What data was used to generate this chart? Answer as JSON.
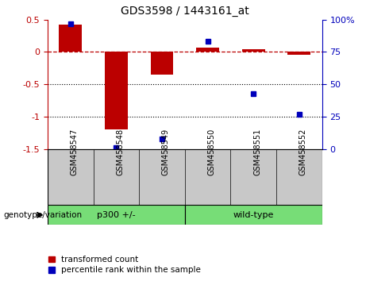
{
  "title": "GDS3598 / 1443161_at",
  "samples": [
    "GSM458547",
    "GSM458548",
    "GSM458549",
    "GSM458550",
    "GSM458551",
    "GSM458552"
  ],
  "red_values": [
    0.42,
    -1.2,
    -0.35,
    0.07,
    0.04,
    -0.04
  ],
  "blue_values_pct": [
    97,
    1,
    8,
    83,
    43,
    27
  ],
  "group_labels": [
    "p300 +/-",
    "wild-type"
  ],
  "group_spans": [
    3,
    3
  ],
  "group_color": "#77DD77",
  "sample_bg_color": "#C8C8C8",
  "ylim_left": [
    -1.5,
    0.5
  ],
  "ylim_right": [
    0,
    100
  ],
  "yticks_left": [
    -1.5,
    -1.0,
    -0.5,
    0.0,
    0.5
  ],
  "yticks_right": [
    0,
    25,
    50,
    75,
    100
  ],
  "red_color": "#BB0000",
  "blue_color": "#0000BB",
  "bg_color": "#ffffff",
  "legend_red": "transformed count",
  "legend_blue": "percentile rank within the sample",
  "genotype_label": "genotype/variation",
  "bar_width": 0.5
}
